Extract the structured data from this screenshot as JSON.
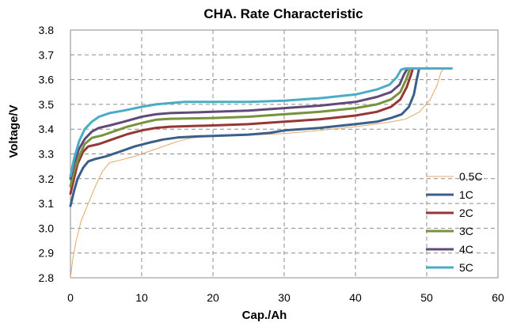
{
  "chart_data": {
    "type": "line",
    "title": "CHA. Rate Characteristic",
    "xlabel": "Cap./Ah",
    "ylabel": "Voltage/V",
    "xlim": [
      0,
      60
    ],
    "ylim": [
      2.8,
      3.8
    ],
    "x_ticks": [
      "0",
      "10",
      "20",
      "30",
      "40",
      "50",
      "60"
    ],
    "y_ticks": [
      "2.8",
      "2.9",
      "3.0",
      "3.1",
      "3.2",
      "3.3",
      "3.4",
      "3.5",
      "3.6",
      "3.7",
      "3.8"
    ],
    "grid": true,
    "legend_position": "right",
    "series": [
      {
        "name": "0.5C",
        "color": "#e3a76b",
        "width": 1,
        "points": [
          [
            0,
            2.8
          ],
          [
            0.3,
            2.87
          ],
          [
            0.8,
            2.95
          ],
          [
            1.5,
            3.03
          ],
          [
            2.5,
            3.1
          ],
          [
            3.5,
            3.17
          ],
          [
            4.5,
            3.23
          ],
          [
            5.5,
            3.265
          ],
          [
            7,
            3.275
          ],
          [
            9,
            3.29
          ],
          [
            11,
            3.31
          ],
          [
            13,
            3.33
          ],
          [
            15,
            3.35
          ],
          [
            17,
            3.365
          ],
          [
            20,
            3.372
          ],
          [
            25,
            3.376
          ],
          [
            30,
            3.382
          ],
          [
            35,
            3.395
          ],
          [
            40,
            3.41
          ],
          [
            44,
            3.425
          ],
          [
            47,
            3.44
          ],
          [
            49,
            3.47
          ],
          [
            50.5,
            3.52
          ],
          [
            51.5,
            3.58
          ],
          [
            52,
            3.63
          ],
          [
            52.3,
            3.64
          ]
        ]
      },
      {
        "name": "1C",
        "color": "#3a5f8a",
        "width": 3,
        "points": [
          [
            0,
            3.09
          ],
          [
            0.5,
            3.15
          ],
          [
            1,
            3.2
          ],
          [
            1.8,
            3.245
          ],
          [
            2.5,
            3.27
          ],
          [
            3.5,
            3.28
          ],
          [
            5,
            3.29
          ],
          [
            7,
            3.31
          ],
          [
            9,
            3.33
          ],
          [
            11,
            3.345
          ],
          [
            13,
            3.358
          ],
          [
            15,
            3.366
          ],
          [
            18,
            3.371
          ],
          [
            20,
            3.373
          ],
          [
            25,
            3.378
          ],
          [
            28,
            3.385
          ],
          [
            30,
            3.395
          ],
          [
            35,
            3.405
          ],
          [
            40,
            3.42
          ],
          [
            43,
            3.43
          ],
          [
            45,
            3.445
          ],
          [
            46.5,
            3.46
          ],
          [
            47.5,
            3.49
          ],
          [
            48.2,
            3.54
          ],
          [
            48.6,
            3.6
          ],
          [
            48.9,
            3.64
          ],
          [
            49,
            3.645
          ]
        ]
      },
      {
        "name": "2C",
        "color": "#953735",
        "width": 3,
        "points": [
          [
            0,
            3.14
          ],
          [
            0.5,
            3.2
          ],
          [
            1,
            3.26
          ],
          [
            1.8,
            3.31
          ],
          [
            2.5,
            3.33
          ],
          [
            4,
            3.34
          ],
          [
            6,
            3.36
          ],
          [
            8,
            3.38
          ],
          [
            10,
            3.395
          ],
          [
            12,
            3.405
          ],
          [
            14,
            3.41
          ],
          [
            20,
            3.415
          ],
          [
            25,
            3.42
          ],
          [
            30,
            3.43
          ],
          [
            35,
            3.44
          ],
          [
            40,
            3.455
          ],
          [
            43,
            3.47
          ],
          [
            45,
            3.49
          ],
          [
            46.3,
            3.52
          ],
          [
            47.2,
            3.57
          ],
          [
            47.8,
            3.62
          ],
          [
            48,
            3.64
          ]
        ]
      },
      {
        "name": "3C",
        "color": "#77933c",
        "width": 3,
        "points": [
          [
            0,
            3.17
          ],
          [
            0.5,
            3.23
          ],
          [
            1.2,
            3.29
          ],
          [
            2,
            3.34
          ],
          [
            3,
            3.365
          ],
          [
            4.5,
            3.375
          ],
          [
            6,
            3.39
          ],
          [
            8,
            3.41
          ],
          [
            10,
            3.425
          ],
          [
            12,
            3.438
          ],
          [
            14,
            3.442
          ],
          [
            20,
            3.445
          ],
          [
            25,
            3.45
          ],
          [
            30,
            3.46
          ],
          [
            35,
            3.47
          ],
          [
            40,
            3.485
          ],
          [
            43,
            3.5
          ],
          [
            45,
            3.52
          ],
          [
            46.3,
            3.55
          ],
          [
            47.1,
            3.6
          ],
          [
            47.6,
            3.64
          ]
        ]
      },
      {
        "name": "4C",
        "color": "#604a7b",
        "width": 3,
        "points": [
          [
            0,
            3.2
          ],
          [
            0.5,
            3.26
          ],
          [
            1.2,
            3.32
          ],
          [
            2,
            3.36
          ],
          [
            3,
            3.39
          ],
          [
            4,
            3.405
          ],
          [
            5.5,
            3.415
          ],
          [
            7.5,
            3.43
          ],
          [
            10,
            3.45
          ],
          [
            12,
            3.46
          ],
          [
            14,
            3.465
          ],
          [
            20,
            3.47
          ],
          [
            25,
            3.475
          ],
          [
            30,
            3.485
          ],
          [
            35,
            3.495
          ],
          [
            40,
            3.51
          ],
          [
            43,
            3.53
          ],
          [
            45,
            3.55
          ],
          [
            46.2,
            3.58
          ],
          [
            46.8,
            3.62
          ],
          [
            47.2,
            3.64
          ]
        ]
      },
      {
        "name": "5C",
        "color": "#4bacc6",
        "width": 3,
        "points": [
          [
            0,
            3.21
          ],
          [
            0.5,
            3.28
          ],
          [
            1.2,
            3.35
          ],
          [
            2,
            3.4
          ],
          [
            3,
            3.43
          ],
          [
            4,
            3.45
          ],
          [
            5.5,
            3.465
          ],
          [
            7.5,
            3.475
          ],
          [
            10,
            3.49
          ],
          [
            12,
            3.5
          ],
          [
            14,
            3.505
          ],
          [
            16,
            3.51
          ],
          [
            20,
            3.51
          ],
          [
            25,
            3.51
          ],
          [
            30,
            3.515
          ],
          [
            35,
            3.525
          ],
          [
            40,
            3.54
          ],
          [
            43,
            3.56
          ],
          [
            44.8,
            3.58
          ],
          [
            45.8,
            3.61
          ],
          [
            46.4,
            3.64
          ],
          [
            47,
            3.645
          ],
          [
            50,
            3.645
          ],
          [
            53.5,
            3.645
          ]
        ]
      }
    ]
  }
}
